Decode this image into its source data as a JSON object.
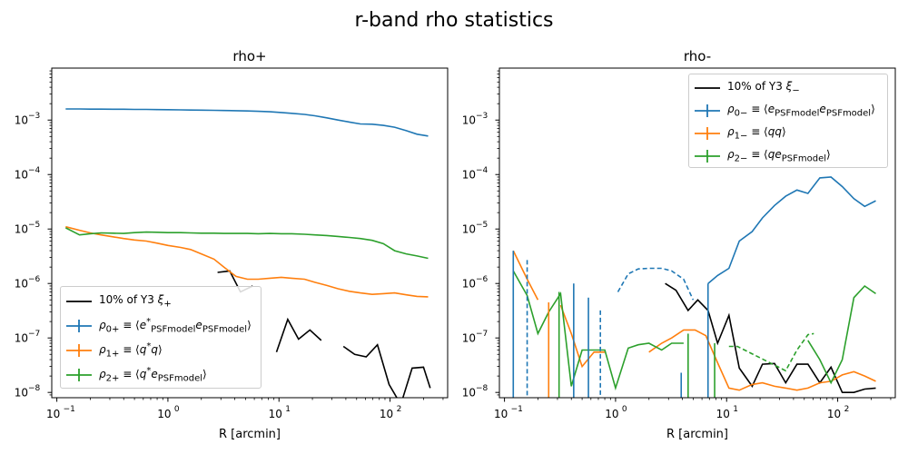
{
  "figure": {
    "suptitle": "r-band rho statistics"
  },
  "colors": {
    "rho0": "#1f77b4",
    "rho1": "#ff7f0e",
    "rho2": "#2ca02c",
    "ref": "#000000"
  },
  "chart_data": [
    {
      "type": "line",
      "title": "rho+",
      "xlabel": "R [arcmin]",
      "ylabel": "",
      "xscale": "log",
      "yscale": "log",
      "xlim": [
        0.09,
        330
      ],
      "ylim": [
        8e-09,
        0.009
      ],
      "x_ticks": [
        "10^-1",
        "10^0",
        "10^1",
        "10^2"
      ],
      "y_ticks": [
        "10^-8",
        "10^-7",
        "10^-6",
        "10^-5",
        "10^-4",
        "10^-3"
      ],
      "legend": {
        "position": "lower-left",
        "entries": [
          {
            "label": "10% of Y3 ξ₊",
            "html": "10% of Y3 <i>ξ</i><sub>+</sub>",
            "marker": "line",
            "color_key": "ref"
          },
          {
            "label": "ρ0+ ≡ ⟨e*PSFmodel ePSFmodel⟩",
            "html": "<i>ρ</i><sub>0+</sub> ≡ ⟨<i>e</i><sup>*</sup><sub>PSFmodel</sub><i>e</i><sub>PSFmodel</sub>⟩",
            "marker": "errorbar",
            "color_key": "rho0"
          },
          {
            "label": "ρ1+ ≡ ⟨q*q⟩",
            "html": "<i>ρ</i><sub>1+</sub> ≡ ⟨<i>q</i><sup>*</sup><i>q</i>⟩",
            "marker": "errorbar",
            "color_key": "rho1"
          },
          {
            "label": "ρ2+ ≡ ⟨q*ePSFmodel⟩",
            "html": "<i>ρ</i><sub>2+</sub> ≡ ⟨<i>q</i><sup>*</sup><i>e</i><sub>PSFmodel</sub>⟩",
            "marker": "errorbar",
            "color_key": "rho2"
          }
        ]
      },
      "series": [
        {
          "key": "ref",
          "color_key": "ref",
          "x": [
            2.8,
            3.6,
            4.5,
            5.8,
            7.5,
            9.5,
            12,
            15,
            19,
            24,
            30,
            38,
            48,
            61,
            77,
            98,
            125,
            158,
            200,
            230
          ],
          "y": [
            1.6e-06,
            1.7e-06,
            7e-07,
            9e-07,
            null,
            5.5e-08,
            2.2e-07,
            9.5e-08,
            1.4e-07,
            9e-08,
            null,
            7e-08,
            5e-08,
            4.5e-08,
            7.5e-08,
            1.4e-08,
            6e-09,
            2.8e-08,
            2.9e-08,
            1.2e-08
          ]
        },
        {
          "key": "rho0",
          "color_key": "rho0",
          "x": [
            0.12,
            0.16,
            0.2,
            0.25,
            0.32,
            0.4,
            0.5,
            0.64,
            0.8,
            1.0,
            1.3,
            1.6,
            2.0,
            2.6,
            3.2,
            4.1,
            5.2,
            6.5,
            8.3,
            10.5,
            13,
            17,
            21,
            27,
            34,
            43,
            54,
            69,
            87,
            110,
            140,
            175,
            220
          ],
          "y": [
            0.0016,
            0.0016,
            0.00159,
            0.00159,
            0.00158,
            0.00158,
            0.00157,
            0.00157,
            0.00156,
            0.00155,
            0.00154,
            0.00153,
            0.00152,
            0.00151,
            0.0015,
            0.00149,
            0.00147,
            0.00145,
            0.00142,
            0.00138,
            0.00133,
            0.00127,
            0.0012,
            0.0011,
            0.001,
            0.00092,
            0.00085,
            0.00084,
            0.0008,
            0.00074,
            0.00064,
            0.00055,
            0.00051
          ]
        },
        {
          "key": "rho1",
          "color_key": "rho1",
          "x": [
            0.12,
            0.16,
            0.2,
            0.25,
            0.32,
            0.4,
            0.5,
            0.64,
            0.8,
            1.0,
            1.3,
            1.6,
            2.0,
            2.6,
            3.2,
            4.1,
            5.2,
            6.5,
            8.3,
            10.5,
            13,
            17,
            21,
            27,
            34,
            43,
            54,
            69,
            87,
            110,
            140,
            175,
            220
          ],
          "y": [
            1.1e-05,
            9.5e-06,
            8.5e-06,
            7.8e-06,
            7.2e-06,
            6.7e-06,
            6.3e-06,
            6e-06,
            5.5e-06,
            5e-06,
            4.6e-06,
            4.2e-06,
            3.5e-06,
            2.8e-06,
            2e-06,
            1.35e-06,
            1.2e-06,
            1.2e-06,
            1.25e-06,
            1.3e-06,
            1.25e-06,
            1.2e-06,
            1.05e-06,
            9.2e-07,
            8e-07,
            7.2e-07,
            6.7e-07,
            6.3e-07,
            6.5e-07,
            6.7e-07,
            6.2e-07,
            5.8e-07,
            5.7e-07
          ]
        },
        {
          "key": "rho2",
          "color_key": "rho2",
          "x": [
            0.12,
            0.16,
            0.2,
            0.25,
            0.32,
            0.4,
            0.5,
            0.64,
            0.8,
            1.0,
            1.3,
            1.6,
            2.0,
            2.6,
            3.2,
            4.1,
            5.2,
            6.5,
            8.3,
            10.5,
            13,
            17,
            21,
            27,
            34,
            43,
            54,
            69,
            87,
            110,
            140,
            175,
            220
          ],
          "y": [
            1.05e-05,
            7.8e-06,
            8.2e-06,
            8.5e-06,
            8.4e-06,
            8.3e-06,
            8.6e-06,
            8.8e-06,
            8.7e-06,
            8.6e-06,
            8.6e-06,
            8.5e-06,
            8.4e-06,
            8.4e-06,
            8.3e-06,
            8.3e-06,
            8.3e-06,
            8.2e-06,
            8.3e-06,
            8.2e-06,
            8.2e-06,
            8e-06,
            7.8e-06,
            7.6e-06,
            7.3e-06,
            7e-06,
            6.7e-06,
            6.2e-06,
            5.4e-06,
            4e-06,
            3.5e-06,
            3.2e-06,
            2.9e-06
          ]
        }
      ]
    },
    {
      "type": "line",
      "title": "rho-",
      "xlabel": "R [arcmin]",
      "ylabel": "",
      "xscale": "log",
      "yscale": "log",
      "xlim": [
        0.09,
        330
      ],
      "ylim": [
        8e-09,
        0.009
      ],
      "x_ticks": [
        "10^-1",
        "10^0",
        "10^1",
        "10^2"
      ],
      "y_ticks": [
        "10^-8",
        "10^-7",
        "10^-6",
        "10^-5",
        "10^-4",
        "10^-3"
      ],
      "legend": {
        "position": "upper-right",
        "entries": [
          {
            "label": "10% of Y3 ξ₋",
            "html": "10% of Y3 <i>ξ</i><sub>−</sub>",
            "marker": "line",
            "color_key": "ref"
          },
          {
            "label": "ρ0− ≡ ⟨ePSFmodel ePSFmodel⟩",
            "html": "<i>ρ</i><sub>0−</sub> ≡ ⟨<i>e</i><sub>PSFmodel</sub><i>e</i><sub>PSFmodel</sub>⟩",
            "marker": "errorbar",
            "color_key": "rho0"
          },
          {
            "label": "ρ1− ≡ ⟨qq⟩",
            "html": "<i>ρ</i><sub>1−</sub> ≡ ⟨<i>qq</i>⟩",
            "marker": "errorbar",
            "color_key": "rho1"
          },
          {
            "label": "ρ2− ≡ ⟨qePSFmodel⟩",
            "html": "<i>ρ</i><sub>2−</sub> ≡ ⟨<i>qe</i><sub>PSFmodel</sub>⟩",
            "marker": "errorbar",
            "color_key": "rho2"
          }
        ]
      },
      "series": [
        {
          "key": "ref",
          "color_key": "ref",
          "style": "solid",
          "x": [
            2.8,
            3.5,
            4.5,
            5.5,
            6.8,
            8.3,
            10.5,
            13,
            17,
            21,
            27,
            34,
            43,
            54,
            69,
            87,
            110,
            140,
            175,
            220
          ],
          "y": [
            1e-06,
            7.5e-07,
            3.2e-07,
            5e-07,
            3.2e-07,
            8e-08,
            2.6e-07,
            2.8e-08,
            1.3e-08,
            3.3e-08,
            3.4e-08,
            1.5e-08,
            3.3e-08,
            3.3e-08,
            1.5e-08,
            2.9e-08,
            1e-08,
            1e-08,
            1.15e-08,
            1.2e-08
          ]
        },
        {
          "key": "rho0",
          "color_key": "rho0",
          "style": "solid",
          "x": [
            6.8,
            8.3,
            10.5,
            13,
            17,
            21,
            27,
            34,
            43,
            54,
            69,
            87,
            110,
            140,
            175,
            220
          ],
          "y": [
            1e-06,
            1.4e-06,
            1.9e-06,
            6e-06,
            9e-06,
            1.6e-05,
            2.7e-05,
            4e-05,
            5.2e-05,
            4.5e-05,
            8.7e-05,
            9e-05,
            6e-05,
            3.6e-05,
            2.6e-05,
            3.3e-05
          ]
        },
        {
          "key": "rho0_neg",
          "color_key": "rho0",
          "style": "dashed",
          "x": [
            1.05,
            1.3,
            1.6,
            2.0,
            2.6,
            3.2,
            4.1,
            5.0
          ],
          "y": [
            7e-07,
            1.5e-06,
            1.85e-06,
            1.9e-06,
            1.9e-06,
            1.7e-06,
            1.2e-06,
            5e-07
          ]
        },
        {
          "key": "rho1",
          "color_key": "rho1",
          "style": "solid",
          "x": [
            0.12,
            0.16,
            0.2,
            0.25,
            0.32,
            0.4,
            0.5,
            0.64,
            0.8,
            1.0,
            1.3,
            1.6,
            2.0,
            2.6,
            3.2,
            4.1,
            5.2,
            6.5,
            8.3,
            10.5,
            13,
            17,
            21,
            27,
            34,
            43,
            54,
            69,
            87,
            110,
            140,
            175,
            220
          ],
          "y": [
            4e-06,
            1.2e-06,
            5e-07,
            null,
            4e-07,
            1.2e-07,
            3e-08,
            5.5e-08,
            5.5e-08,
            null,
            null,
            null,
            5.5e-08,
            8e-08,
            1e-07,
            1.4e-07,
            1.4e-07,
            1.1e-07,
            3.5e-08,
            1.2e-08,
            1.1e-08,
            1.4e-08,
            1.5e-08,
            1.3e-08,
            1.2e-08,
            1.1e-08,
            1.2e-08,
            1.5e-08,
            1.6e-08,
            2.1e-08,
            2.4e-08,
            2e-08,
            1.6e-08
          ]
        },
        {
          "key": "rho2",
          "color_key": "rho2",
          "style": "solid",
          "x": [
            0.12,
            0.16,
            0.2,
            0.25,
            0.32,
            0.4,
            0.5,
            0.64,
            0.8,
            1.0,
            1.3,
            1.6,
            2.0,
            2.6,
            3.2,
            4.1,
            5.2,
            6.5,
            8.3,
            10.5,
            13,
            17,
            21,
            27,
            34,
            43,
            54,
            69,
            87,
            110,
            140,
            175,
            220
          ],
          "y": [
            1.7e-06,
            6e-07,
            1.2e-07,
            3e-07,
            6.5e-07,
            1.3e-08,
            6e-08,
            6e-08,
            6e-08,
            1.2e-08,
            6.5e-08,
            7.5e-08,
            8e-08,
            6e-08,
            8e-08,
            8e-08,
            null,
            null,
            null,
            null,
            null,
            null,
            null,
            null,
            null,
            null,
            9e-08,
            4e-08,
            1.5e-08,
            4e-08,
            5.5e-07,
            9e-07,
            6.5e-07
          ]
        },
        {
          "key": "rho2_neg",
          "color_key": "rho2",
          "style": "dashed",
          "x": [
            10.5,
            12.5,
            34,
            43,
            54,
            61
          ],
          "y": [
            7e-08,
            7e-08,
            2.5e-08,
            6e-08,
            1.15e-07,
            1.2e-07
          ]
        }
      ],
      "error_bars": [
        {
          "color_key": "rho0",
          "x": 0.12,
          "y_top": 4e-06,
          "style": "solid"
        },
        {
          "color_key": "rho0",
          "x": 0.16,
          "y_top": 2.7e-06,
          "style": "dashed"
        },
        {
          "color_key": "rho0",
          "x": 0.42,
          "y_top": 1e-06,
          "style": "solid"
        },
        {
          "color_key": "rho0",
          "x": 0.57,
          "y_top": 5.5e-07,
          "style": "solid"
        },
        {
          "color_key": "rho0",
          "x": 0.73,
          "y_top": 3.2e-07,
          "style": "dashed"
        },
        {
          "color_key": "rho0",
          "x": 3.9,
          "y_top": 2.3e-08,
          "style": "solid"
        },
        {
          "color_key": "rho0",
          "x": 6.8,
          "y_top": 1e-06,
          "style": "solid"
        },
        {
          "color_key": "rho1",
          "x": 0.25,
          "y_top": 4.5e-07,
          "style": "solid"
        },
        {
          "color_key": "rho2",
          "x": 0.31,
          "y_top": 7e-07,
          "style": "solid"
        },
        {
          "color_key": "rho2",
          "x": 4.5,
          "y_top": 1.2e-07,
          "style": "solid"
        },
        {
          "color_key": "rho2",
          "x": 7.8,
          "y_top": 8e-08,
          "style": "solid"
        }
      ]
    }
  ]
}
